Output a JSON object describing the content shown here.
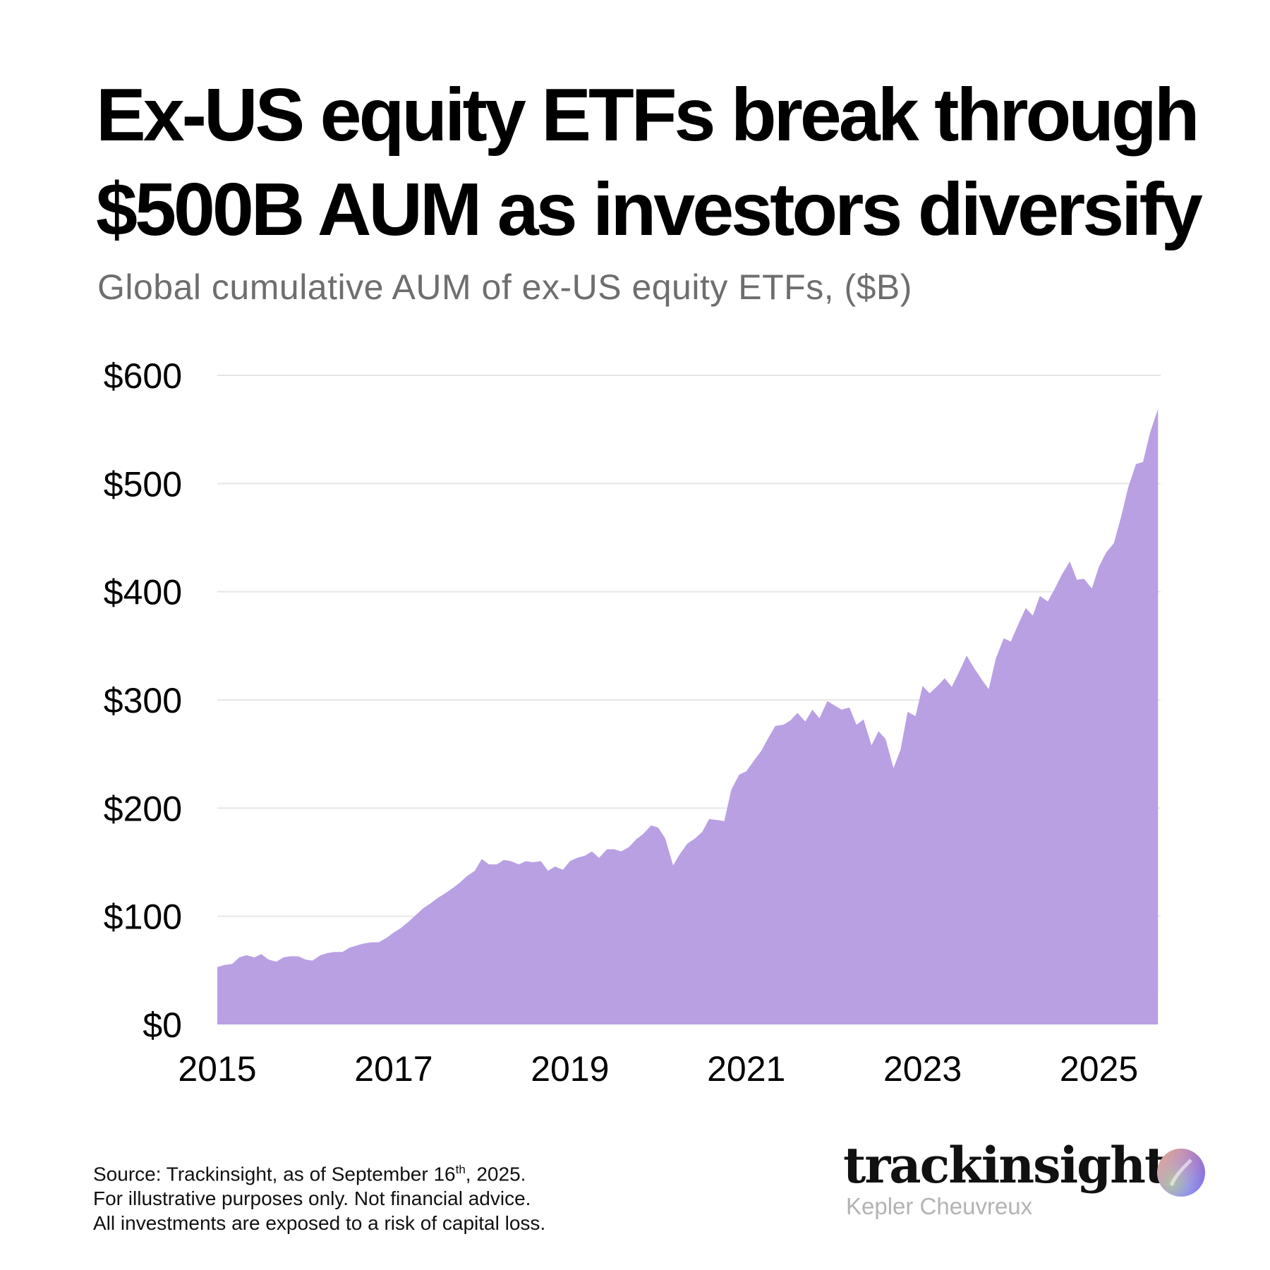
{
  "header": {
    "title_line1": "Ex-US equity ETFs break through",
    "title_line2": "$500B AUM as investors diversify",
    "subtitle": "Global cumulative AUM of ex-US equity ETFs, ($B)"
  },
  "footer": {
    "source_prefix": "Source: Trackinsight, as of September 16",
    "source_sup": "th",
    "source_suffix": ", 2025.",
    "line2": "For illustrative purposes only. Not financial advice.",
    "line3": "All investments are exposed to a risk of capital loss."
  },
  "brand": {
    "name": "trackinsight",
    "partner": "Kepler Cheuvreux",
    "logo_icon": "trackinsight-logo-icon"
  },
  "colors": {
    "area_fill": "#b9a0e3",
    "gridline": "#e6e6e6",
    "subtitle": "#6e6e6e"
  },
  "chart_data": {
    "type": "area",
    "title": "Ex-US equity ETFs break through $500B AUM as investors diversify",
    "subtitle": "Global cumulative AUM of ex-US equity ETFs, ($B)",
    "xlabel": "",
    "ylabel": "",
    "xlim": [
      2015.0,
      2025.7
    ],
    "ylim": [
      0,
      600
    ],
    "grid": true,
    "y_ticks": [
      0,
      100,
      200,
      300,
      400,
      500,
      600
    ],
    "y_tick_labels": [
      "$0",
      "$100",
      "$200",
      "$300",
      "$400",
      "$500",
      "$600"
    ],
    "x_ticks": [
      2015,
      2017,
      2019,
      2021,
      2023,
      2025
    ],
    "x_tick_labels": [
      "2015",
      "2017",
      "2019",
      "2021",
      "2023",
      "2025"
    ],
    "series": [
      {
        "x": [
          2015.0,
          2015.08,
          2015.17,
          2015.25,
          2015.33,
          2015.42,
          2015.5,
          2015.58,
          2015.67,
          2015.75,
          2015.83,
          2015.92,
          2016.0,
          2016.08,
          2016.17,
          2016.25,
          2016.33,
          2016.42,
          2016.5,
          2016.58,
          2016.67,
          2016.75,
          2016.83,
          2016.92,
          2017.0,
          2017.08,
          2017.17,
          2017.25,
          2017.33,
          2017.42,
          2017.5,
          2017.58,
          2017.67,
          2017.75,
          2017.83,
          2017.92,
          2018.0,
          2018.08,
          2018.17,
          2018.25,
          2018.33,
          2018.42,
          2018.5,
          2018.58,
          2018.67,
          2018.75,
          2018.83,
          2018.92,
          2019.0,
          2019.08,
          2019.17,
          2019.25,
          2019.33,
          2019.42,
          2019.5,
          2019.58,
          2019.67,
          2019.75,
          2019.83,
          2019.92,
          2020.0,
          2020.08,
          2020.17,
          2020.25,
          2020.33,
          2020.42,
          2020.5,
          2020.58,
          2020.67,
          2020.75,
          2020.83,
          2020.92,
          2021.0,
          2021.08,
          2021.17,
          2021.25,
          2021.33,
          2021.42,
          2021.5,
          2021.58,
          2021.67,
          2021.75,
          2021.83,
          2021.92,
          2022.0,
          2022.08,
          2022.17,
          2022.25,
          2022.33,
          2022.42,
          2022.5,
          2022.58,
          2022.67,
          2022.75,
          2022.83,
          2022.92,
          2023.0,
          2023.08,
          2023.17,
          2023.25,
          2023.33,
          2023.42,
          2023.5,
          2023.58,
          2023.67,
          2023.75,
          2023.83,
          2023.92,
          2024.0,
          2024.08,
          2024.17,
          2024.25,
          2024.33,
          2024.42,
          2024.5,
          2024.58,
          2024.67,
          2024.75,
          2024.83,
          2024.92,
          2025.0,
          2025.08,
          2025.17,
          2025.25,
          2025.33,
          2025.42,
          2025.5,
          2025.58,
          2025.67
        ],
        "values": [
          53,
          55,
          56,
          62,
          64,
          62,
          65,
          60,
          58,
          62,
          63,
          63,
          60,
          59,
          64,
          66,
          67,
          67,
          71,
          73,
          75,
          76,
          76,
          80,
          85,
          89,
          95,
          101,
          107,
          112,
          117,
          121,
          126,
          131,
          137,
          142,
          153,
          148,
          148,
          152,
          151,
          148,
          151,
          150,
          151,
          142,
          146,
          143,
          151,
          154,
          156,
          160,
          154,
          162,
          162,
          160,
          164,
          171,
          176,
          184,
          182,
          172,
          147,
          158,
          167,
          172,
          178,
          190,
          189,
          188,
          217,
          231,
          234,
          243,
          253,
          265,
          276,
          277,
          281,
          288,
          280,
          291,
          283,
          299,
          295,
          291,
          293,
          277,
          282,
          258,
          271,
          264,
          237,
          254,
          289,
          285,
          313,
          306,
          313,
          320,
          312,
          327,
          341,
          330,
          319,
          310,
          338,
          357,
          354,
          369,
          385,
          378,
          396,
          391,
          403,
          416,
          428,
          411,
          412,
          403,
          423,
          436,
          445,
          469,
          496,
          518,
          520,
          547,
          569
        ]
      }
    ]
  }
}
